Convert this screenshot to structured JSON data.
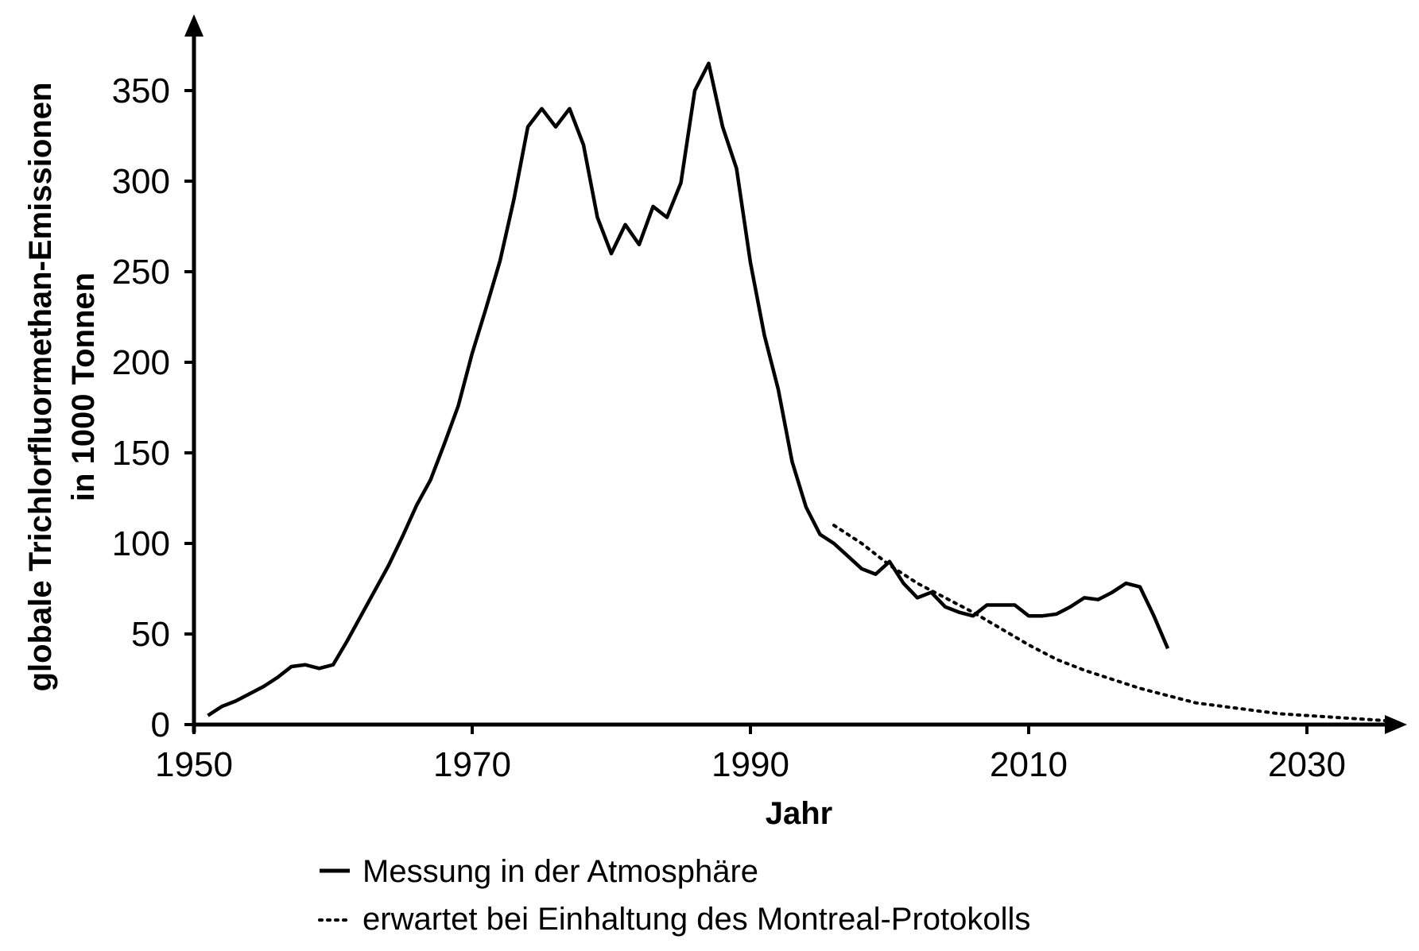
{
  "chart_data": {
    "type": "line",
    "title": "",
    "xlabel": "Jahr",
    "ylabel": [
      "globale Trichlorfluormethan-Emissionen",
      "in 1000 Tonnen"
    ],
    "xlim": [
      1950,
      2036
    ],
    "ylim": [
      0,
      370
    ],
    "xticks": [
      1950,
      1970,
      1990,
      2010,
      2030
    ],
    "yticks": [
      0,
      50,
      100,
      150,
      200,
      250,
      300,
      350
    ],
    "grid": false,
    "legend_placement": "bottom",
    "series": [
      {
        "name": "Messung in der Atmosphäre",
        "style": "solid",
        "color": "#000000",
        "x": [
          1951,
          1952,
          1953,
          1954,
          1955,
          1956,
          1957,
          1958,
          1959,
          1960,
          1961,
          1962,
          1963,
          1964,
          1965,
          1966,
          1967,
          1968,
          1969,
          1970,
          1971,
          1972,
          1973,
          1974,
          1975,
          1976,
          1977,
          1978,
          1979,
          1980,
          1981,
          1982,
          1983,
          1984,
          1985,
          1986,
          1987,
          1988,
          1989,
          1990,
          1991,
          1992,
          1993,
          1994,
          1995,
          1996,
          1997,
          1998,
          1999,
          2000,
          2001,
          2002,
          2003,
          2004,
          2005,
          2006,
          2007,
          2008,
          2009,
          2010,
          2011,
          2012,
          2013,
          2014,
          2015,
          2016,
          2017,
          2018,
          2019,
          2020
        ],
        "y": [
          5,
          10,
          13,
          17,
          21,
          26,
          32,
          33,
          31,
          33,
          46,
          60,
          74,
          88,
          104,
          121,
          135,
          155,
          176,
          205,
          230,
          256,
          290,
          330,
          340,
          330,
          340,
          320,
          280,
          260,
          276,
          265,
          286,
          280,
          299,
          350,
          365,
          330,
          307,
          255,
          215,
          185,
          145,
          120,
          105,
          100,
          93,
          86,
          83,
          90,
          78,
          70,
          73,
          65,
          62,
          60,
          66,
          66,
          66,
          60,
          60,
          61,
          65,
          70,
          69,
          73,
          78,
          76,
          60,
          42
        ]
      },
      {
        "name": "erwartet bei Einhaltung des Montreal-Protokolls",
        "style": "dotted",
        "color": "#000000",
        "x": [
          1996,
          1998,
          2000,
          2002,
          2004,
          2006,
          2008,
          2010,
          2012,
          2014,
          2016,
          2018,
          2020,
          2022,
          2024,
          2026,
          2028,
          2030,
          2032,
          2034,
          2036
        ],
        "y": [
          110,
          100,
          88,
          78,
          70,
          62,
          53,
          44,
          36,
          30,
          25,
          20,
          16,
          12,
          10,
          8,
          6,
          5,
          4,
          3,
          2
        ]
      }
    ]
  }
}
